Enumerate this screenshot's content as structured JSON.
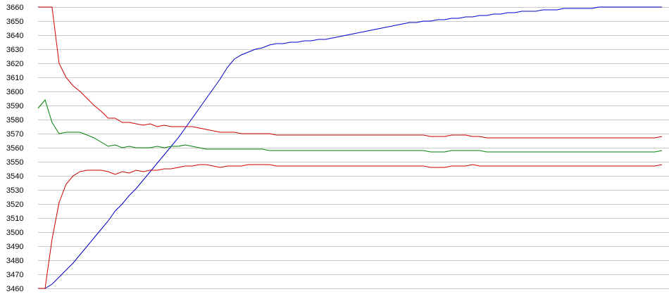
{
  "chart_data": {
    "type": "line",
    "title": "",
    "xlabel": "",
    "ylabel": "",
    "ylim": [
      3460,
      3660
    ],
    "y_ticks": [
      3460,
      3470,
      3480,
      3490,
      3500,
      3510,
      3520,
      3530,
      3540,
      3550,
      3560,
      3570,
      3580,
      3590,
      3600,
      3610,
      3620,
      3630,
      3640,
      3650,
      3660
    ],
    "grid": "horizontal",
    "legend": "none",
    "x": [
      0,
      1,
      2,
      3,
      4,
      5,
      6,
      7,
      8,
      9,
      10,
      11,
      12,
      13,
      14,
      15,
      16,
      17,
      18,
      19,
      20,
      21,
      22,
      23,
      24,
      25,
      26,
      27,
      28,
      29,
      30,
      31,
      32,
      33,
      34,
      35,
      36,
      37,
      38,
      39,
      40,
      41,
      42,
      43,
      44,
      45,
      46,
      47,
      48,
      49,
      50,
      51,
      52,
      53,
      54,
      55,
      56,
      57,
      58,
      59,
      60,
      61,
      62,
      63,
      64,
      65,
      66,
      67,
      68,
      69,
      70,
      71,
      72,
      73,
      74,
      75,
      76,
      77,
      78,
      79,
      80,
      81,
      82,
      83,
      84,
      85,
      86,
      87,
      88,
      89
    ],
    "series": [
      {
        "color": "#0000cc",
        "values": [
          3460,
          3460,
          3463,
          3468,
          3473,
          3478,
          3484,
          3490,
          3496,
          3502,
          3508,
          3515,
          3520,
          3526,
          3531,
          3537,
          3543,
          3549,
          3555,
          3561,
          3567,
          3574,
          3581,
          3588,
          3595,
          3602,
          3609,
          3617,
          3623,
          3626,
          3628,
          3630,
          3631,
          3633,
          3634,
          3634,
          3635,
          3635,
          3636,
          3636,
          3637,
          3637,
          3638,
          3639,
          3640,
          3641,
          3642,
          3643,
          3644,
          3645,
          3646,
          3647,
          3648,
          3649,
          3649,
          3650,
          3650,
          3651,
          3651,
          3652,
          3652,
          3653,
          3653,
          3654,
          3654,
          3655,
          3655,
          3656,
          3656,
          3657,
          3657,
          3657,
          3658,
          3658,
          3658,
          3659,
          3659,
          3659,
          3659,
          3659,
          3660,
          3660,
          3660,
          3660,
          3660,
          3660,
          3660,
          3660,
          3660,
          3660
        ]
      },
      {
        "color": "#cc0000",
        "values": [
          3660,
          3660,
          3660,
          3620,
          3610,
          3604,
          3600,
          3595,
          3590,
          3586,
          3581,
          3581,
          3578,
          3578,
          3577,
          3576,
          3577,
          3575,
          3576,
          3575,
          3575,
          3575,
          3575,
          3574,
          3573,
          3572,
          3571,
          3571,
          3571,
          3570,
          3570,
          3570,
          3570,
          3570,
          3569,
          3569,
          3569,
          3569,
          3569,
          3569,
          3569,
          3569,
          3569,
          3569,
          3569,
          3569,
          3569,
          3569,
          3569,
          3569,
          3569,
          3569,
          3569,
          3569,
          3569,
          3569,
          3568,
          3568,
          3568,
          3569,
          3569,
          3569,
          3568,
          3568,
          3567,
          3567,
          3567,
          3567,
          3567,
          3567,
          3567,
          3567,
          3567,
          3567,
          3567,
          3567,
          3567,
          3567,
          3567,
          3567,
          3567,
          3567,
          3567,
          3567,
          3567,
          3567,
          3567,
          3567,
          3567,
          3568
        ]
      },
      {
        "color": "#008000",
        "values": [
          3588,
          3594,
          3578,
          3570,
          3571,
          3571,
          3571,
          3569,
          3567,
          3564,
          3561,
          3562,
          3560,
          3561,
          3560,
          3560,
          3560,
          3561,
          3560,
          3561,
          3561,
          3562,
          3561,
          3560,
          3559,
          3559,
          3559,
          3559,
          3559,
          3559,
          3559,
          3559,
          3559,
          3558,
          3558,
          3558,
          3558,
          3558,
          3558,
          3558,
          3558,
          3558,
          3558,
          3558,
          3558,
          3558,
          3558,
          3558,
          3558,
          3558,
          3558,
          3558,
          3558,
          3558,
          3558,
          3558,
          3557,
          3557,
          3557,
          3558,
          3558,
          3558,
          3558,
          3558,
          3557,
          3557,
          3557,
          3557,
          3557,
          3557,
          3557,
          3557,
          3557,
          3557,
          3557,
          3557,
          3557,
          3557,
          3557,
          3557,
          3557,
          3557,
          3557,
          3557,
          3557,
          3557,
          3557,
          3557,
          3557,
          3558
        ]
      },
      {
        "color": "#cc0000",
        "values": [
          3460,
          3460,
          3495,
          3521,
          3534,
          3540,
          3543,
          3544,
          3544,
          3544,
          3543,
          3541,
          3543,
          3542,
          3544,
          3543,
          3544,
          3544,
          3545,
          3545,
          3546,
          3547,
          3547,
          3548,
          3548,
          3547,
          3546,
          3547,
          3547,
          3547,
          3548,
          3548,
          3548,
          3548,
          3547,
          3547,
          3547,
          3547,
          3547,
          3547,
          3547,
          3547,
          3547,
          3547,
          3547,
          3547,
          3547,
          3547,
          3547,
          3547,
          3547,
          3547,
          3547,
          3547,
          3547,
          3547,
          3546,
          3546,
          3546,
          3547,
          3547,
          3547,
          3548,
          3547,
          3547,
          3547,
          3547,
          3547,
          3547,
          3547,
          3547,
          3547,
          3547,
          3547,
          3547,
          3547,
          3547,
          3547,
          3547,
          3547,
          3547,
          3547,
          3547,
          3547,
          3547,
          3547,
          3547,
          3547,
          3547,
          3548
        ]
      }
    ]
  }
}
